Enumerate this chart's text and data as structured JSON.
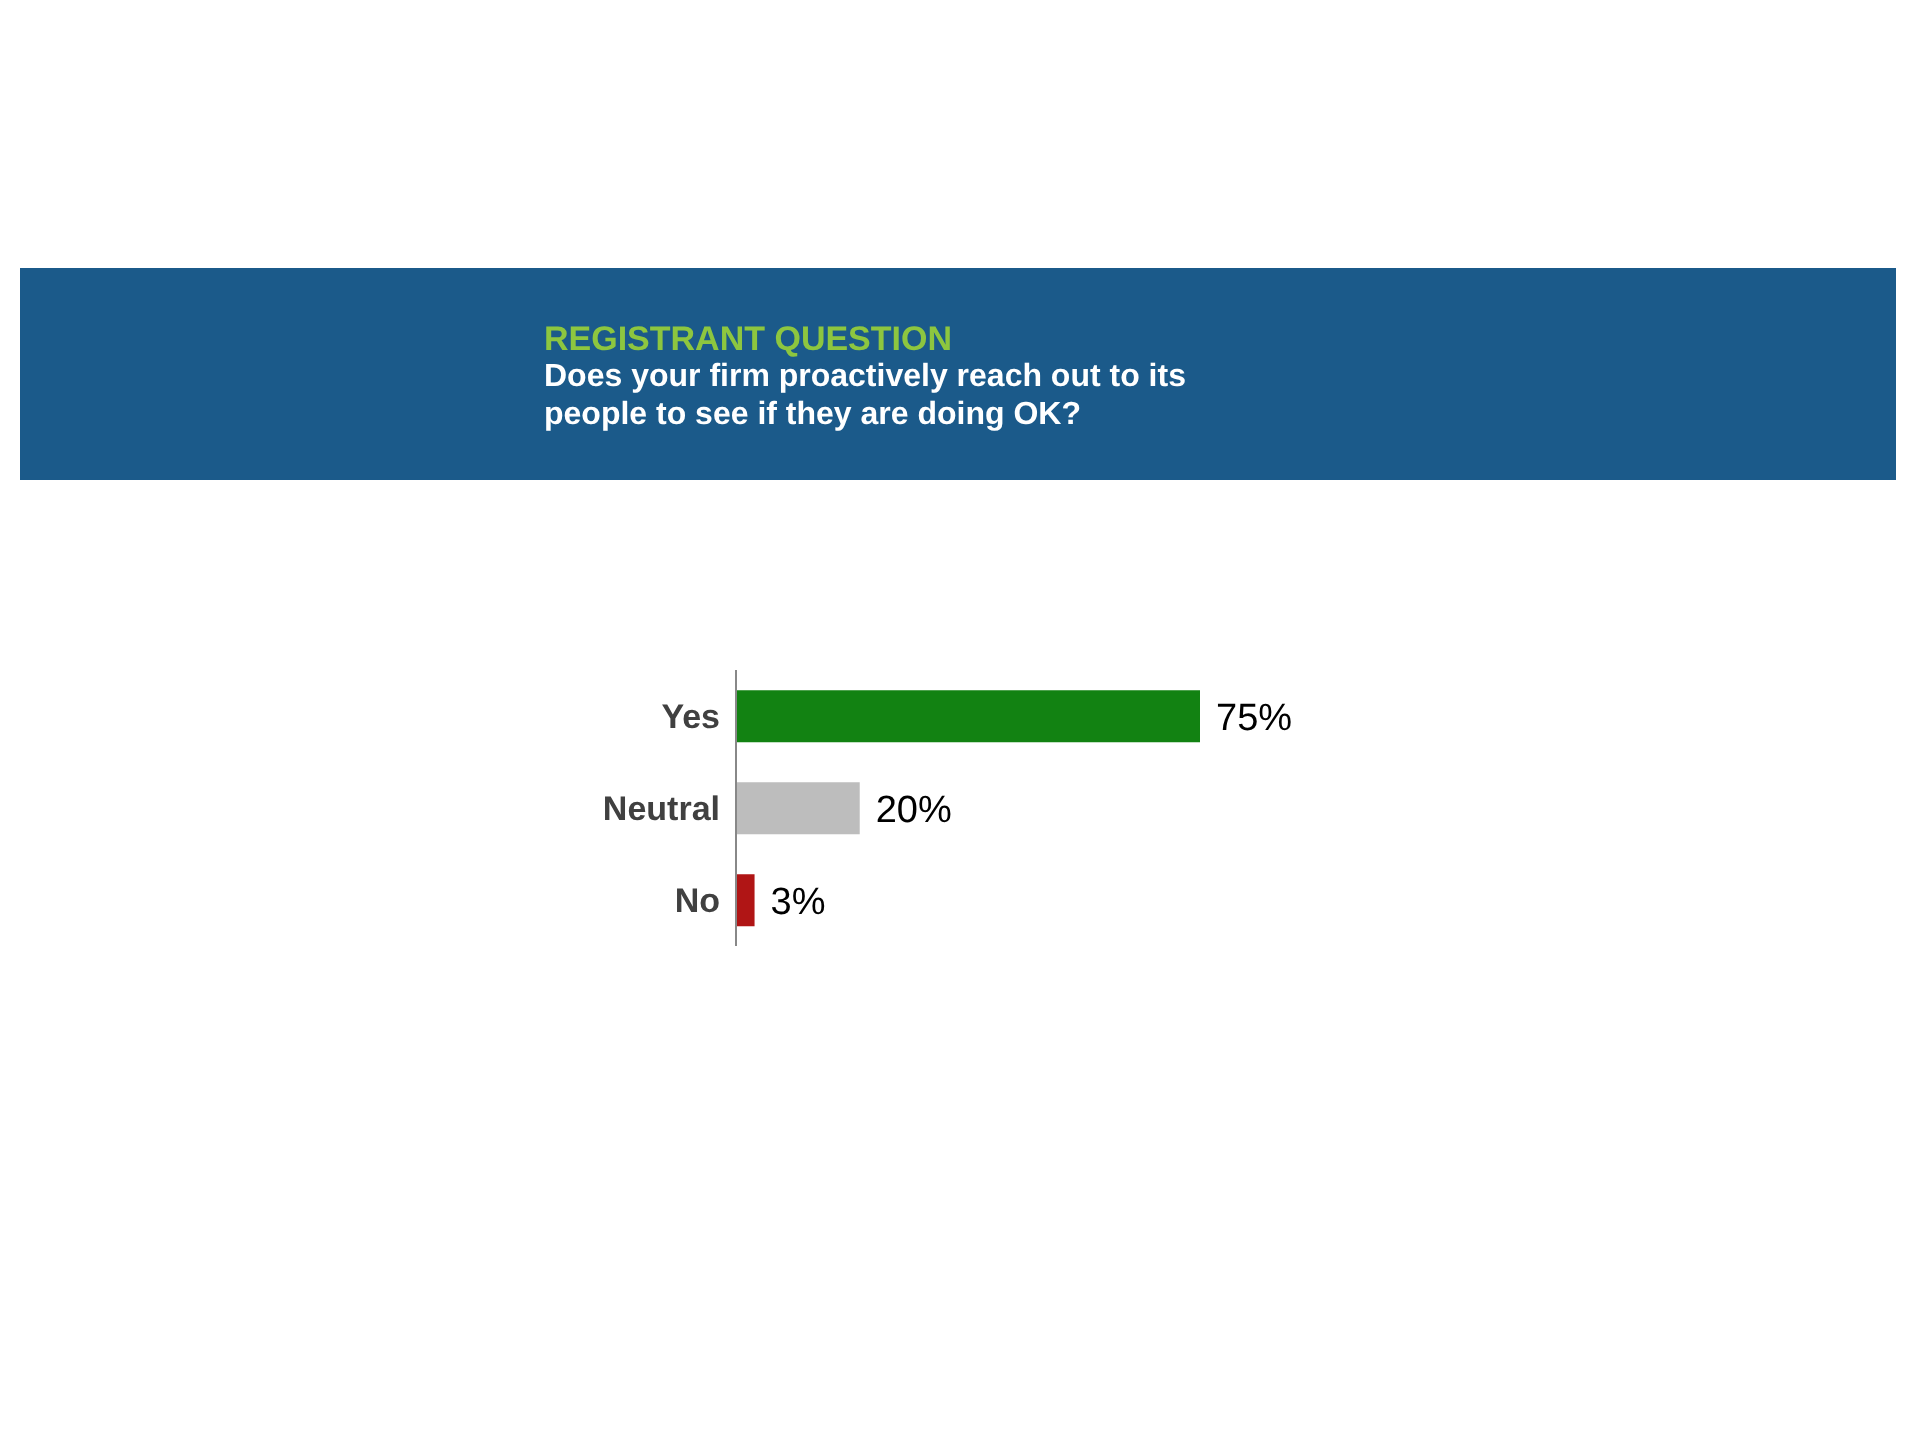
{
  "chart_data": {
    "type": "bar",
    "orientation": "horizontal",
    "title": "REGISTRANT QUESTION",
    "subtitle": "Does your firm proactively reach out to its people to see if they are doing OK?",
    "categories": [
      "Yes",
      "Neutral",
      "No"
    ],
    "values": [
      75,
      20,
      3
    ],
    "colors": [
      "#128212",
      "#bdbdbd",
      "#b01515"
    ],
    "value_labels": [
      "75%",
      "20%",
      "3%"
    ],
    "grid": false,
    "legend": false
  }
}
